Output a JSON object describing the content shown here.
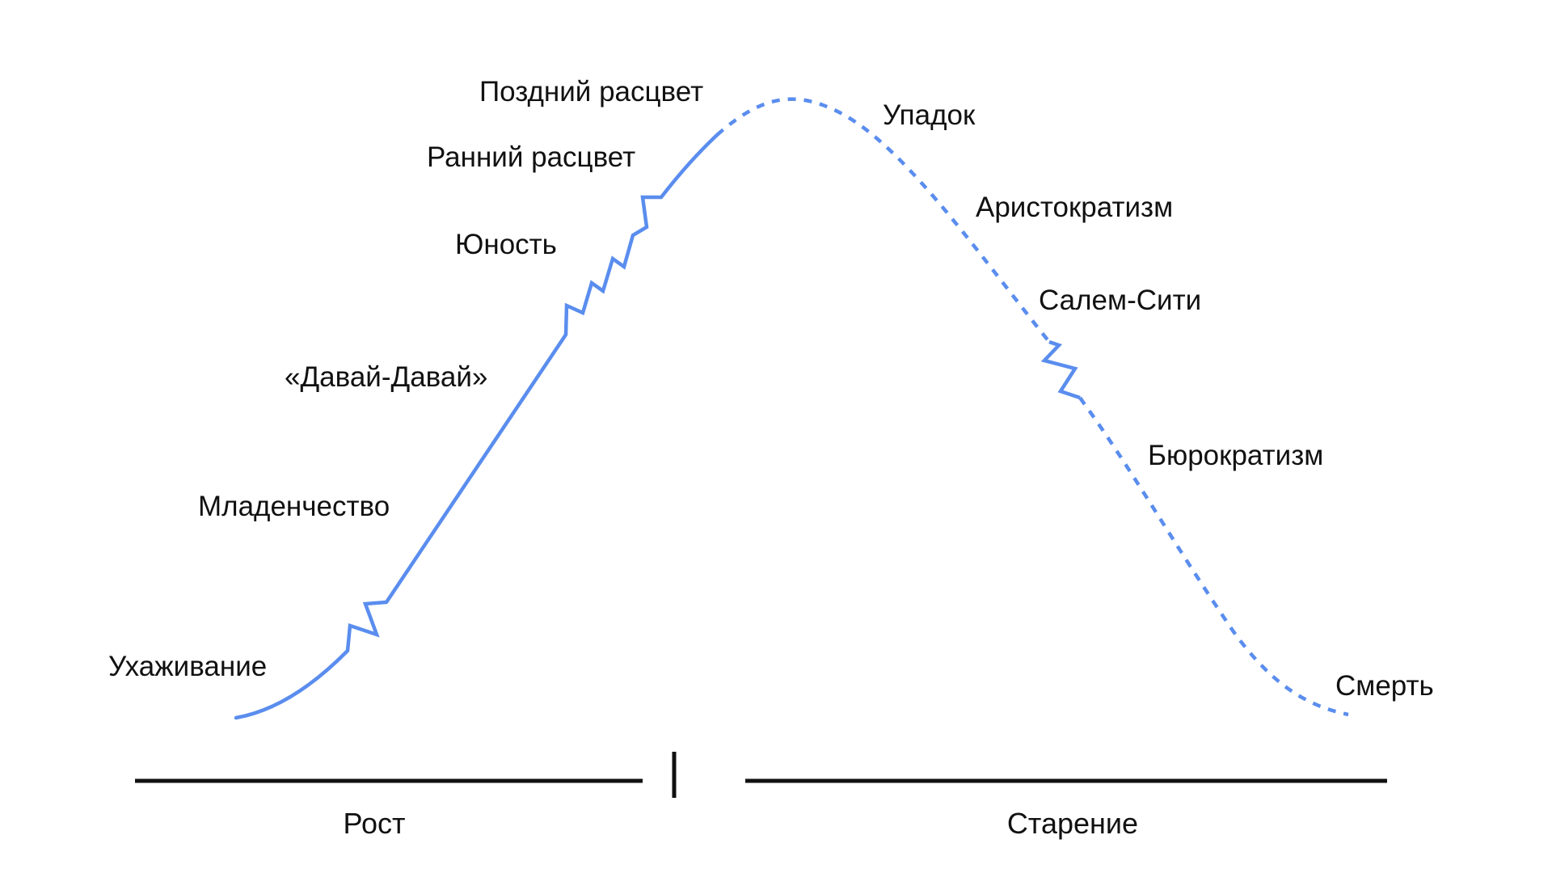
{
  "stages": [
    {
      "id": "courtship",
      "label": "Ухаживание"
    },
    {
      "id": "infancy",
      "label": "Младенчество"
    },
    {
      "id": "go-go",
      "label": "«Давай-Давай»"
    },
    {
      "id": "adolescence",
      "label": "Юность"
    },
    {
      "id": "early-prime",
      "label": "Ранний расцвет"
    },
    {
      "id": "late-prime",
      "label": "Поздний расцвет"
    },
    {
      "id": "decline",
      "label": "Упадок"
    },
    {
      "id": "aristocracy",
      "label": "Аристократизм"
    },
    {
      "id": "salem-city",
      "label": "Салем-Сити"
    },
    {
      "id": "bureaucracy",
      "label": "Бюрократизм"
    },
    {
      "id": "death",
      "label": "Смерть"
    }
  ],
  "phases": {
    "growth": "Рост",
    "aging": "Старение"
  },
  "colors": {
    "curve": "#5a8dee",
    "text": "#111111",
    "axis": "#111111"
  }
}
